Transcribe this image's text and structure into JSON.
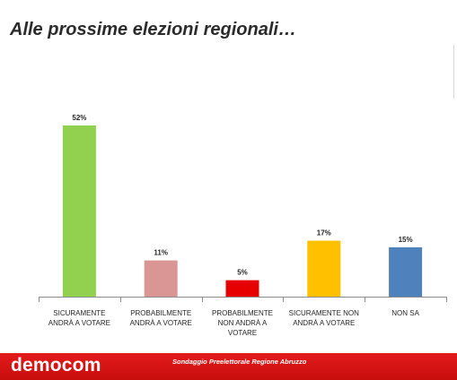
{
  "header": {
    "title": "Alle prossime elezioni regionali…"
  },
  "footer": {
    "brand": "democom",
    "subtitle": "Sondaggio Preelettorale Regione Abruzzo"
  },
  "chart_data": {
    "type": "bar",
    "categories": [
      [
        "SICURAMENTE",
        "ANDRÀ A VOTARE"
      ],
      [
        "PROBABILMENTE",
        "ANDRÀ A VOTARE"
      ],
      [
        "PROBABILMENTE",
        "NON ANDRÀ A",
        "VOTARE"
      ],
      [
        "SICURAMENTE NON",
        "ANDRÀ A VOTARE"
      ],
      [
        "NON SA"
      ]
    ],
    "values": [
      52,
      11,
      5,
      17,
      15
    ],
    "data_labels": [
      "52%",
      "11%",
      "5%",
      "17%",
      "15%"
    ],
    "colors": [
      "#92d050",
      "#da9694",
      "#e60000",
      "#ffc000",
      "#4f81bd"
    ],
    "ylim": [
      0,
      60
    ],
    "grid": false,
    "legend": "none"
  }
}
